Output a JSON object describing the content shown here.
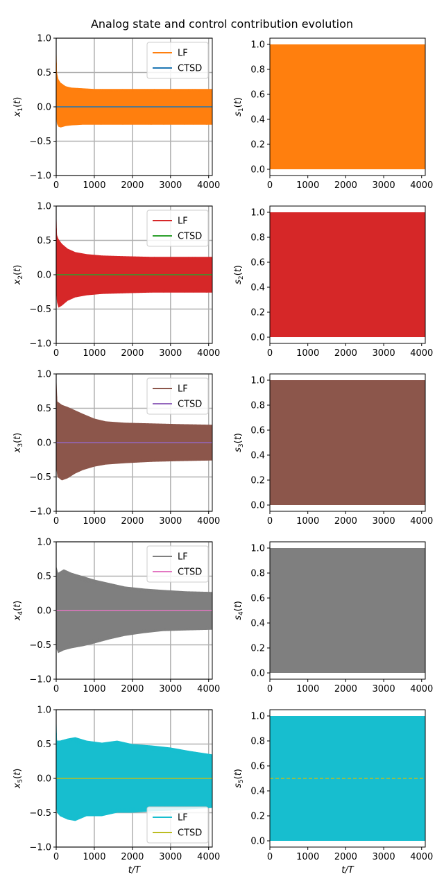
{
  "title": "Analog state and control contribution evolution",
  "chart_data": [
    {
      "type": "line",
      "panel": "state",
      "row": 1,
      "ylabel": "x_1(t)",
      "ylabel_sym": "x",
      "ylabel_sub": "1",
      "xlabel": "",
      "xlim": [
        0,
        4096
      ],
      "ylim": [
        -1.0,
        1.0
      ],
      "xticks": [
        "0",
        "1000",
        "2000",
        "3000",
        "4000"
      ],
      "yticks": [
        "−1.0",
        "−0.5",
        "0.0",
        "0.5",
        "1.0"
      ],
      "grid": true,
      "legend": "top-right",
      "series": [
        {
          "name": "LF",
          "color": "#ff7f0e",
          "kind": "oscillation",
          "x": [
            0,
            20,
            60,
            120,
            250,
            400,
            700,
            1000,
            1500,
            2000,
            3000,
            4096
          ],
          "upper": [
            1.0,
            0.5,
            0.4,
            0.35,
            0.3,
            0.28,
            0.27,
            0.26,
            0.26,
            0.26,
            0.26,
            0.26
          ],
          "lower": [
            -0.1,
            -0.25,
            -0.29,
            -0.3,
            -0.28,
            -0.27,
            -0.26,
            -0.26,
            -0.26,
            -0.26,
            -0.26,
            -0.26
          ]
        },
        {
          "name": "CTSD",
          "color": "#1f77b4",
          "kind": "line",
          "x": [
            0,
            4096
          ],
          "y": [
            0.0,
            0.0
          ]
        }
      ]
    },
    {
      "type": "area",
      "panel": "control",
      "row": 1,
      "ylabel": "s_1(t)",
      "ylabel_sym": "s",
      "ylabel_sub": "1",
      "xlabel": "",
      "xlim": [
        0,
        4096
      ],
      "ylim": [
        -0.05,
        1.05
      ],
      "xticks": [
        "0",
        "1000",
        "2000",
        "3000",
        "4000"
      ],
      "yticks": [
        "0.0",
        "0.2",
        "0.4",
        "0.6",
        "0.8",
        "1.0"
      ],
      "grid": false,
      "series": [
        {
          "name": "",
          "color": "#ff7f0e",
          "kind": "band",
          "x": [
            0,
            4096
          ],
          "upper": [
            1.0,
            1.0
          ],
          "lower": [
            0.0,
            0.0
          ]
        }
      ]
    },
    {
      "type": "line",
      "panel": "state",
      "row": 2,
      "ylabel": "x_2(t)",
      "ylabel_sym": "x",
      "ylabel_sub": "2",
      "xlabel": "",
      "xlim": [
        0,
        4096
      ],
      "ylim": [
        -1.0,
        1.0
      ],
      "xticks": [
        "0",
        "1000",
        "2000",
        "3000",
        "4000"
      ],
      "yticks": [
        "−1.0",
        "−0.5",
        "0.0",
        "0.5",
        "1.0"
      ],
      "grid": true,
      "legend": "top-right",
      "series": [
        {
          "name": "LF",
          "color": "#d62728",
          "kind": "oscillation",
          "x": [
            0,
            20,
            60,
            150,
            300,
            500,
            800,
            1200,
            1800,
            2500,
            3200,
            4096
          ],
          "upper": [
            1.0,
            0.58,
            0.52,
            0.45,
            0.38,
            0.33,
            0.3,
            0.28,
            0.27,
            0.26,
            0.26,
            0.26
          ],
          "lower": [
            -0.2,
            -0.4,
            -0.48,
            -0.45,
            -0.38,
            -0.33,
            -0.3,
            -0.28,
            -0.27,
            -0.26,
            -0.26,
            -0.26
          ]
        },
        {
          "name": "CTSD",
          "color": "#2ca02c",
          "kind": "line",
          "x": [
            0,
            4096
          ],
          "y": [
            0.0,
            0.0
          ]
        }
      ]
    },
    {
      "type": "area",
      "panel": "control",
      "row": 2,
      "ylabel": "s_2(t)",
      "ylabel_sym": "s",
      "ylabel_sub": "2",
      "xlabel": "",
      "xlim": [
        0,
        4096
      ],
      "ylim": [
        -0.05,
        1.05
      ],
      "xticks": [
        "0",
        "1000",
        "2000",
        "3000",
        "4000"
      ],
      "yticks": [
        "0.0",
        "0.2",
        "0.4",
        "0.6",
        "0.8",
        "1.0"
      ],
      "grid": false,
      "series": [
        {
          "name": "",
          "color": "#d62728",
          "kind": "band",
          "x": [
            0,
            4096
          ],
          "upper": [
            1.0,
            1.0
          ],
          "lower": [
            0.0,
            0.0
          ]
        }
      ]
    },
    {
      "type": "line",
      "panel": "state",
      "row": 3,
      "ylabel": "x_3(t)",
      "ylabel_sym": "x",
      "ylabel_sub": "3",
      "xlabel": "",
      "xlim": [
        0,
        4096
      ],
      "ylim": [
        -1.0,
        1.0
      ],
      "xticks": [
        "0",
        "1000",
        "2000",
        "3000",
        "4000"
      ],
      "yticks": [
        "−1.0",
        "−0.5",
        "0.0",
        "0.5",
        "1.0"
      ],
      "grid": true,
      "legend": "top-right",
      "series": [
        {
          "name": "LF",
          "color": "#8c564b",
          "kind": "oscillation",
          "x": [
            0,
            30,
            150,
            300,
            500,
            700,
            1000,
            1300,
            1800,
            2500,
            3200,
            4096
          ],
          "upper": [
            1.0,
            0.6,
            0.55,
            0.52,
            0.47,
            0.42,
            0.35,
            0.31,
            0.29,
            0.28,
            0.27,
            0.26
          ],
          "lower": [
            -0.35,
            -0.5,
            -0.55,
            -0.52,
            -0.45,
            -0.4,
            -0.35,
            -0.32,
            -0.3,
            -0.28,
            -0.27,
            -0.26
          ]
        },
        {
          "name": "CTSD",
          "color": "#9467bd",
          "kind": "line",
          "x": [
            0,
            4096
          ],
          "y": [
            0.0,
            0.0
          ]
        }
      ]
    },
    {
      "type": "area",
      "panel": "control",
      "row": 3,
      "ylabel": "s_3(t)",
      "ylabel_sym": "s",
      "ylabel_sub": "3",
      "xlabel": "",
      "xlim": [
        0,
        4096
      ],
      "ylim": [
        -0.05,
        1.05
      ],
      "xticks": [
        "0",
        "1000",
        "2000",
        "3000",
        "4000"
      ],
      "yticks": [
        "0.0",
        "0.2",
        "0.4",
        "0.6",
        "0.8",
        "1.0"
      ],
      "grid": false,
      "series": [
        {
          "name": "",
          "color": "#8c564b",
          "kind": "band",
          "x": [
            0,
            4096
          ],
          "upper": [
            1.0,
            1.0
          ],
          "lower": [
            0.0,
            0.0
          ]
        }
      ]
    },
    {
      "type": "line",
      "panel": "state",
      "row": 4,
      "ylabel": "x_4(t)",
      "ylabel_sym": "x",
      "ylabel_sub": "4",
      "xlabel": "",
      "xlim": [
        0,
        4096
      ],
      "ylim": [
        -1.0,
        1.0
      ],
      "xticks": [
        "0",
        "1000",
        "2000",
        "3000",
        "4000"
      ],
      "yticks": [
        "−1.0",
        "−0.5",
        "0.0",
        "0.5",
        "1.0"
      ],
      "grid": true,
      "legend": "top-right",
      "series": [
        {
          "name": "LF",
          "color": "#7f7f7f",
          "kind": "oscillation",
          "x": [
            0,
            50,
            200,
            400,
            700,
            1000,
            1400,
            1800,
            2300,
            2800,
            3400,
            4096
          ],
          "upper": [
            0.65,
            0.55,
            0.6,
            0.55,
            0.5,
            0.45,
            0.4,
            0.35,
            0.32,
            0.3,
            0.28,
            0.27
          ],
          "lower": [
            -0.55,
            -0.62,
            -0.58,
            -0.55,
            -0.52,
            -0.48,
            -0.42,
            -0.37,
            -0.33,
            -0.3,
            -0.29,
            -0.28
          ]
        },
        {
          "name": "CTSD",
          "color": "#e377c2",
          "kind": "line",
          "x": [
            0,
            4096
          ],
          "y": [
            0.0,
            0.0
          ]
        }
      ]
    },
    {
      "type": "area",
      "panel": "control",
      "row": 4,
      "ylabel": "s_4(t)",
      "ylabel_sym": "s",
      "ylabel_sub": "4",
      "xlabel": "",
      "xlim": [
        0,
        4096
      ],
      "ylim": [
        -0.05,
        1.05
      ],
      "xticks": [
        "0",
        "1000",
        "2000",
        "3000",
        "4000"
      ],
      "yticks": [
        "0.0",
        "0.2",
        "0.4",
        "0.6",
        "0.8",
        "1.0"
      ],
      "grid": false,
      "series": [
        {
          "name": "",
          "color": "#7f7f7f",
          "kind": "band",
          "x": [
            0,
            4096
          ],
          "upper": [
            1.0,
            1.0
          ],
          "lower": [
            0.0,
            0.0
          ]
        }
      ]
    },
    {
      "type": "line",
      "panel": "state",
      "row": 5,
      "ylabel": "x_5(t)",
      "ylabel_sym": "x",
      "ylabel_sub": "5",
      "xlabel": "t/T",
      "xlim": [
        0,
        4096
      ],
      "ylim": [
        -1.0,
        1.0
      ],
      "xticks": [
        "0",
        "1000",
        "2000",
        "3000",
        "4000"
      ],
      "yticks": [
        "−1.0",
        "−0.5",
        "0.0",
        "0.5",
        "1.0"
      ],
      "grid": true,
      "legend": "bottom-right",
      "series": [
        {
          "name": "LF",
          "color": "#17becf",
          "kind": "oscillation",
          "x": [
            0,
            20,
            100,
            300,
            500,
            800,
            1200,
            1600,
            2000,
            2500,
            3000,
            3500,
            4096
          ],
          "upper": [
            1.0,
            0.55,
            0.55,
            0.58,
            0.6,
            0.55,
            0.52,
            0.55,
            0.5,
            0.48,
            0.45,
            0.4,
            0.35
          ],
          "lower": [
            -0.4,
            -0.5,
            -0.55,
            -0.6,
            -0.62,
            -0.55,
            -0.55,
            -0.5,
            -0.5,
            -0.48,
            -0.47,
            -0.45,
            -0.43
          ]
        },
        {
          "name": "CTSD",
          "color": "#bcbd22",
          "kind": "line",
          "x": [
            0,
            4096
          ],
          "y": [
            0.0,
            0.0
          ]
        }
      ]
    },
    {
      "type": "area",
      "panel": "control",
      "row": 5,
      "ylabel": "s_5(t)",
      "ylabel_sym": "s",
      "ylabel_sub": "5",
      "xlabel": "t/T",
      "xlim": [
        0,
        4096
      ],
      "ylim": [
        -0.05,
        1.05
      ],
      "xticks": [
        "0",
        "1000",
        "2000",
        "3000",
        "4000"
      ],
      "yticks": [
        "0.0",
        "0.2",
        "0.4",
        "0.6",
        "0.8",
        "1.0"
      ],
      "grid": false,
      "series": [
        {
          "name": "",
          "color": "#17becf",
          "kind": "band",
          "x": [
            0,
            4096
          ],
          "upper": [
            1.0,
            1.0
          ],
          "lower": [
            0.0,
            0.0
          ]
        },
        {
          "name": "",
          "color": "#bcbd22",
          "kind": "dashed",
          "x": [
            0,
            4096
          ],
          "y": [
            0.5,
            0.5
          ]
        }
      ]
    }
  ]
}
